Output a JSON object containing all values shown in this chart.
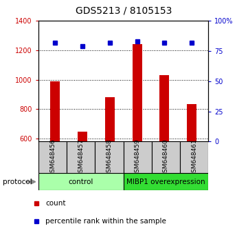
{
  "title": "GDS5213 / 8105153",
  "samples": [
    "GSM648456",
    "GSM648457",
    "GSM648458",
    "GSM648459",
    "GSM648460",
    "GSM648461"
  ],
  "counts": [
    990,
    645,
    880,
    1240,
    1030,
    835
  ],
  "percentile_ranks": [
    82,
    79,
    82,
    83,
    82,
    82
  ],
  "ylim_left": [
    580,
    1400
  ],
  "ylim_right": [
    0,
    100
  ],
  "yticks_left": [
    600,
    800,
    1000,
    1200,
    1400
  ],
  "yticks_right": [
    0,
    25,
    50,
    75,
    100
  ],
  "bar_color": "#cc0000",
  "dot_color": "#0000cc",
  "groups": [
    {
      "label": "control",
      "samples": [
        0,
        1,
        2
      ],
      "color": "#aaffaa"
    },
    {
      "label": "MIBP1 overexpression",
      "samples": [
        3,
        4,
        5
      ],
      "color": "#33dd33"
    }
  ],
  "protocol_label": "protocol",
  "legend_items": [
    {
      "label": "count",
      "color": "#cc0000"
    },
    {
      "label": "percentile rank within the sample",
      "color": "#0000cc"
    }
  ],
  "bar_width": 0.35,
  "x_positions": [
    0,
    1,
    2,
    3,
    4,
    5
  ]
}
